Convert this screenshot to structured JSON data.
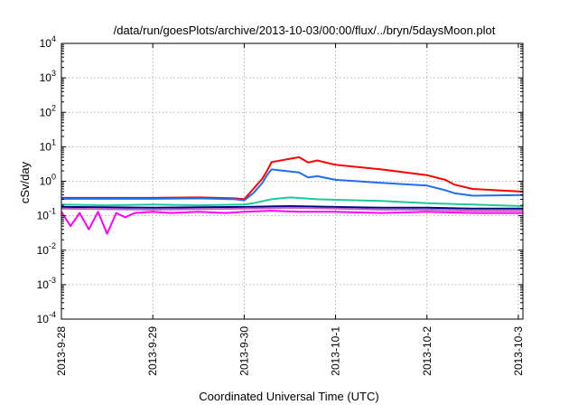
{
  "chart_data": {
    "type": "line",
    "title": "/data/run/goesPlots/archive/2013-10-03/00:00/flux/../bryn/5daysMoon.plot",
    "xlabel": "Coordinated Universal Time (UTC)",
    "ylabel": "cSv/day",
    "yscale": "log",
    "ylim_exp": [
      -4,
      4
    ],
    "y_ticks": [
      {
        "base": "10",
        "exp": "-4"
      },
      {
        "base": "10",
        "exp": "-3"
      },
      {
        "base": "10",
        "exp": "-2"
      },
      {
        "base": "10",
        "exp": "-1"
      },
      {
        "base": "10",
        "exp": "0"
      },
      {
        "base": "10",
        "exp": "1"
      },
      {
        "base": "10",
        "exp": "2"
      },
      {
        "base": "10",
        "exp": "3"
      },
      {
        "base": "10",
        "exp": "4"
      }
    ],
    "x_range_days": [
      0,
      5.05
    ],
    "x_ticks": [
      {
        "label": "2013-9-28",
        "day": 0
      },
      {
        "label": "2013-9-29",
        "day": 1
      },
      {
        "label": "2013-9-30",
        "day": 2
      },
      {
        "label": "2013-10-1",
        "day": 3
      },
      {
        "label": "2013-10-2",
        "day": 4
      },
      {
        "label": "2013-10-3",
        "day": 5
      }
    ],
    "grid": true,
    "series": [
      {
        "color": "#ff00ff",
        "x": [
          0,
          0.1,
          0.2,
          0.3,
          0.4,
          0.5,
          0.6,
          0.7,
          0.8,
          1.0,
          1.2,
          1.5,
          1.8,
          2.0,
          2.3,
          2.6,
          3.0,
          3.5,
          4.0,
          4.5,
          5.05
        ],
        "y": [
          0.13,
          0.05,
          0.12,
          0.04,
          0.13,
          0.03,
          0.12,
          0.09,
          0.12,
          0.13,
          0.12,
          0.13,
          0.12,
          0.13,
          0.14,
          0.13,
          0.13,
          0.12,
          0.13,
          0.12,
          0.12
        ]
      },
      {
        "color": "#ff0000",
        "x": [
          0,
          0.5,
          1.0,
          1.5,
          1.9,
          2.0,
          2.1,
          2.2,
          2.25,
          2.3,
          2.6,
          2.7,
          2.8,
          3.0,
          3.5,
          4.0,
          4.2,
          4.3,
          4.5,
          5.05
        ],
        "y": [
          0.33,
          0.33,
          0.33,
          0.34,
          0.32,
          0.3,
          0.6,
          1.2,
          2.0,
          3.6,
          5.0,
          3.5,
          4.0,
          3.0,
          2.2,
          1.5,
          1.1,
          0.8,
          0.6,
          0.5
        ]
      },
      {
        "color": "#1e6ff0",
        "x": [
          0,
          0.5,
          1.0,
          1.5,
          1.9,
          2.0,
          2.1,
          2.2,
          2.25,
          2.3,
          2.6,
          2.7,
          2.8,
          3.0,
          3.5,
          4.0,
          4.2,
          4.3,
          4.5,
          5.05
        ],
        "y": [
          0.31,
          0.31,
          0.31,
          0.32,
          0.3,
          0.28,
          0.45,
          0.9,
          1.5,
          2.2,
          1.8,
          1.3,
          1.4,
          1.1,
          0.9,
          0.75,
          0.55,
          0.45,
          0.38,
          0.4
        ]
      },
      {
        "color": "#1fc8a0",
        "x": [
          0,
          0.5,
          1.0,
          1.5,
          2.0,
          2.1,
          2.3,
          2.5,
          2.8,
          3.0,
          3.5,
          4.0,
          4.5,
          5.05
        ],
        "y": [
          0.21,
          0.2,
          0.21,
          0.2,
          0.21,
          0.23,
          0.3,
          0.34,
          0.3,
          0.29,
          0.27,
          0.23,
          0.21,
          0.19
        ]
      },
      {
        "color": "#000080",
        "x": [
          0,
          1.0,
          2.0,
          2.5,
          3.0,
          3.5,
          4.0,
          4.5,
          5.05
        ],
        "y": [
          0.18,
          0.17,
          0.18,
          0.19,
          0.18,
          0.17,
          0.17,
          0.16,
          0.16
        ]
      },
      {
        "color": "#c060c0",
        "x": [
          0,
          1.0,
          2.0,
          2.5,
          3.0,
          3.5,
          4.0,
          4.5,
          5.05
        ],
        "y": [
          0.16,
          0.15,
          0.16,
          0.17,
          0.16,
          0.15,
          0.15,
          0.14,
          0.14
        ]
      }
    ]
  }
}
